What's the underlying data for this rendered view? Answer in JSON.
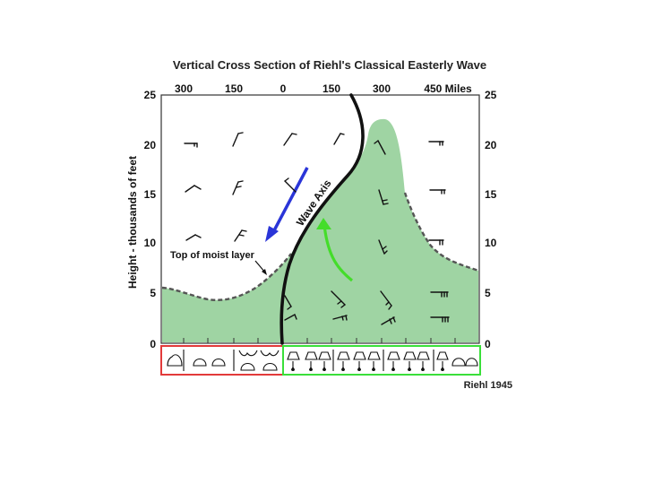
{
  "title": "Vertical Cross Section of Riehl's Classical Easterly Wave",
  "y_axis": {
    "label": "Height - thousands of feet",
    "ticks": [
      "0",
      "5",
      "10",
      "15",
      "20",
      "25"
    ]
  },
  "x_axis": {
    "ticks": [
      "300",
      "150",
      "0",
      "150",
      "300",
      "450 Miles"
    ]
  },
  "annotations": {
    "moist_layer": "Top of moist layer",
    "wave_axis": "Wave Axis"
  },
  "credit": "Riehl 1945",
  "colors": {
    "moist_fill": "#9fd4a3",
    "moist_edge": "#555555",
    "wave_axis": "#111111",
    "west_arrow": "#2a35d8",
    "east_arrow": "#44dd2a",
    "west_box": "#e23a3a",
    "east_box": "#3adf3a"
  },
  "weather_symbols": {
    "west_box": [
      "cumulus-fair",
      "cumulus-fair",
      "cumulus-fair",
      "towering-cumulus",
      "towering-cumulus"
    ],
    "east_box": [
      "cumulonimbus-rain",
      "cumulonimbus-rain",
      "cumulonimbus-rain",
      "cumulonimbus-rain",
      "cumulonimbus-rain",
      "cumulonimbus-rain",
      "cumulonimbus-rain",
      "cumulonimbus-rain",
      "cumulus-fair",
      "cumulus-fair"
    ]
  },
  "wind_barbs_icon": "wind-barb-icon"
}
